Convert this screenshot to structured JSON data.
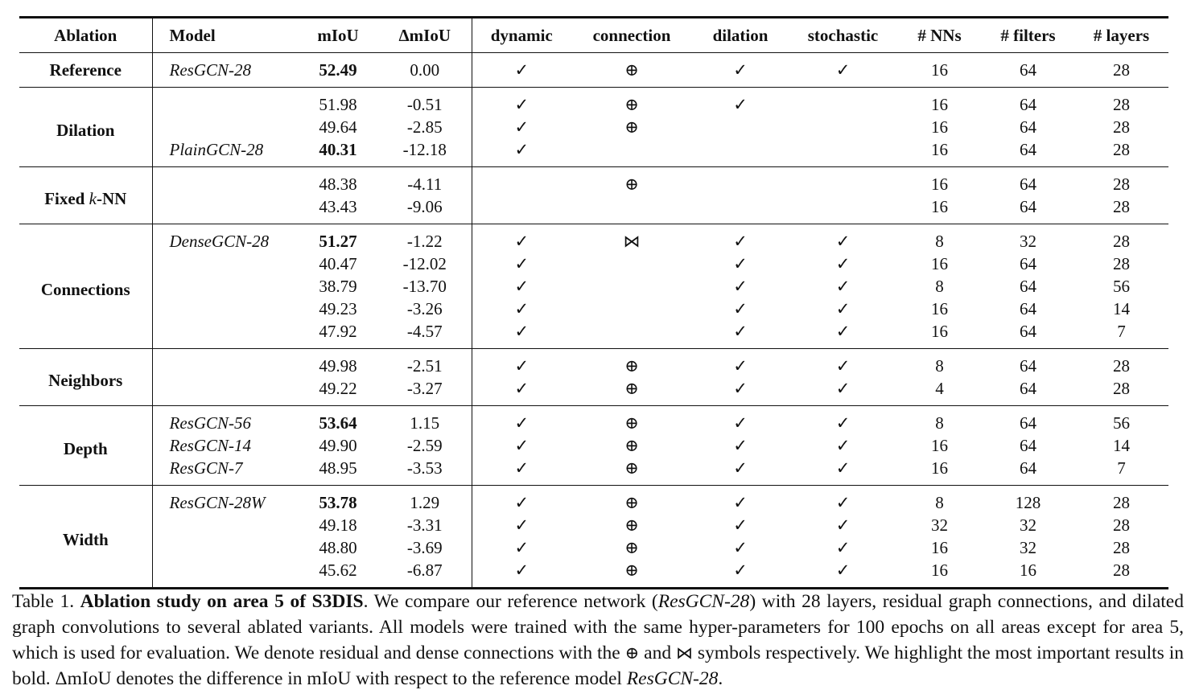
{
  "table": {
    "headers": [
      "Ablation",
      "Model",
      "mIoU",
      "ΔmIoU",
      "dynamic",
      "connection",
      "dilation",
      "stochastic",
      "# NNs",
      "# filters",
      "# layers"
    ],
    "symbols": {
      "check": "✓",
      "residual": "⊕",
      "dense": "⋈"
    },
    "groups": [
      {
        "name": "Reference",
        "rows": [
          {
            "model": "ResGCN-28",
            "miou": "52.49",
            "miou_bold": true,
            "delta": "0.00",
            "dynamic": true,
            "connection": "residual",
            "dilation": true,
            "stochastic": true,
            "nns": "16",
            "filters": "64",
            "layers": "28"
          }
        ]
      },
      {
        "name": "Dilation",
        "rows": [
          {
            "model": "",
            "miou": "51.98",
            "miou_bold": false,
            "delta": "-0.51",
            "dynamic": true,
            "connection": "residual",
            "dilation": true,
            "stochastic": false,
            "nns": "16",
            "filters": "64",
            "layers": "28"
          },
          {
            "model": "",
            "miou": "49.64",
            "miou_bold": false,
            "delta": "-2.85",
            "dynamic": true,
            "connection": "residual",
            "dilation": false,
            "stochastic": false,
            "nns": "16",
            "filters": "64",
            "layers": "28"
          },
          {
            "model": "PlainGCN-28",
            "miou": "40.31",
            "miou_bold": true,
            "delta": "-12.18",
            "dynamic": true,
            "connection": "",
            "dilation": false,
            "stochastic": false,
            "nns": "16",
            "filters": "64",
            "layers": "28"
          }
        ]
      },
      {
        "name": "Fixed k-NN",
        "name_parts": [
          "Fixed ",
          "k",
          "-NN"
        ],
        "rows": [
          {
            "model": "",
            "miou": "48.38",
            "miou_bold": false,
            "delta": "-4.11",
            "dynamic": false,
            "connection": "residual",
            "dilation": false,
            "stochastic": false,
            "nns": "16",
            "filters": "64",
            "layers": "28"
          },
          {
            "model": "",
            "miou": "43.43",
            "miou_bold": false,
            "delta": "-9.06",
            "dynamic": false,
            "connection": "",
            "dilation": false,
            "stochastic": false,
            "nns": "16",
            "filters": "64",
            "layers": "28"
          }
        ]
      },
      {
        "name": "Connections",
        "rows": [
          {
            "model": "DenseGCN-28",
            "miou": "51.27",
            "miou_bold": true,
            "delta": "-1.22",
            "dynamic": true,
            "connection": "dense",
            "dilation": true,
            "stochastic": true,
            "nns": "8",
            "filters": "32",
            "layers": "28"
          },
          {
            "model": "",
            "miou": "40.47",
            "miou_bold": false,
            "delta": "-12.02",
            "dynamic": true,
            "connection": "",
            "dilation": true,
            "stochastic": true,
            "nns": "16",
            "filters": "64",
            "layers": "28"
          },
          {
            "model": "",
            "miou": "38.79",
            "miou_bold": false,
            "delta": "-13.70",
            "dynamic": true,
            "connection": "",
            "dilation": true,
            "stochastic": true,
            "nns": "8",
            "filters": "64",
            "layers": "56"
          },
          {
            "model": "",
            "miou": "49.23",
            "miou_bold": false,
            "delta": "-3.26",
            "dynamic": true,
            "connection": "",
            "dilation": true,
            "stochastic": true,
            "nns": "16",
            "filters": "64",
            "layers": "14"
          },
          {
            "model": "",
            "miou": "47.92",
            "miou_bold": false,
            "delta": "-4.57",
            "dynamic": true,
            "connection": "",
            "dilation": true,
            "stochastic": true,
            "nns": "16",
            "filters": "64",
            "layers": "7"
          }
        ]
      },
      {
        "name": "Neighbors",
        "rows": [
          {
            "model": "",
            "miou": "49.98",
            "miou_bold": false,
            "delta": "-2.51",
            "dynamic": true,
            "connection": "residual",
            "dilation": true,
            "stochastic": true,
            "nns": "8",
            "filters": "64",
            "layers": "28"
          },
          {
            "model": "",
            "miou": "49.22",
            "miou_bold": false,
            "delta": "-3.27",
            "dynamic": true,
            "connection": "residual",
            "dilation": true,
            "stochastic": true,
            "nns": "4",
            "filters": "64",
            "layers": "28"
          }
        ]
      },
      {
        "name": "Depth",
        "rows": [
          {
            "model": "ResGCN-56",
            "miou": "53.64",
            "miou_bold": true,
            "delta": "1.15",
            "dynamic": true,
            "connection": "residual",
            "dilation": true,
            "stochastic": true,
            "nns": "8",
            "filters": "64",
            "layers": "56"
          },
          {
            "model": "ResGCN-14",
            "miou": "49.90",
            "miou_bold": false,
            "delta": "-2.59",
            "dynamic": true,
            "connection": "residual",
            "dilation": true,
            "stochastic": true,
            "nns": "16",
            "filters": "64",
            "layers": "14"
          },
          {
            "model": "ResGCN-7",
            "miou": "48.95",
            "miou_bold": false,
            "delta": "-3.53",
            "dynamic": true,
            "connection": "residual",
            "dilation": true,
            "stochastic": true,
            "nns": "16",
            "filters": "64",
            "layers": "7"
          }
        ]
      },
      {
        "name": "Width",
        "rows": [
          {
            "model": "ResGCN-28W",
            "miou": "53.78",
            "miou_bold": true,
            "delta": "1.29",
            "dynamic": true,
            "connection": "residual",
            "dilation": true,
            "stochastic": true,
            "nns": "8",
            "filters": "128",
            "layers": "28"
          },
          {
            "model": "",
            "miou": "49.18",
            "miou_bold": false,
            "delta": "-3.31",
            "dynamic": true,
            "connection": "residual",
            "dilation": true,
            "stochastic": true,
            "nns": "32",
            "filters": "32",
            "layers": "28"
          },
          {
            "model": "",
            "miou": "48.80",
            "miou_bold": false,
            "delta": "-3.69",
            "dynamic": true,
            "connection": "residual",
            "dilation": true,
            "stochastic": true,
            "nns": "16",
            "filters": "32",
            "layers": "28"
          },
          {
            "model": "",
            "miou": "45.62",
            "miou_bold": false,
            "delta": "-6.87",
            "dynamic": true,
            "connection": "residual",
            "dilation": true,
            "stochastic": true,
            "nns": "16",
            "filters": "16",
            "layers": "28"
          }
        ]
      }
    ]
  },
  "caption": {
    "label": "Table 1. ",
    "title": "Ablation study on area 5 of S3DIS",
    "t1": ". We compare our reference network (",
    "i1": "ResGCN-28",
    "t2": ") with 28 layers, residual graph connections, and dilated graph convolutions to several ablated variants. All models were trained with the same hyper-parameters for 100 epochs on all areas except for area 5, which is used for evaluation. We denote residual and dense connections with the ",
    "sym1": "⊕",
    "t3": " and ",
    "sym2": "⋈",
    "t4": " symbols respectively. We highlight the most important results in bold. ΔmIoU denotes the difference in mIoU with respect to the reference model ",
    "i2": "ResGCN-28",
    "t5": "."
  }
}
